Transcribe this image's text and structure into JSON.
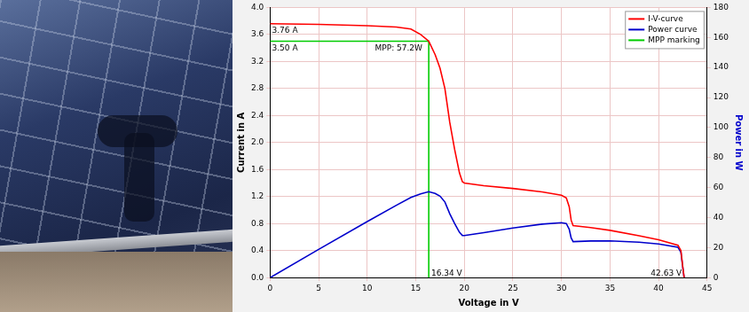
{
  "chart_data": {
    "type": "line",
    "xlabel": "Voltage in V",
    "ylabel": "Current in A",
    "y2label": "Power in W",
    "xlim": [
      0,
      45
    ],
    "xticks": [
      0,
      5,
      10,
      15,
      20,
      25,
      30,
      35,
      40,
      45
    ],
    "ylim": [
      0,
      4
    ],
    "yticks": [
      {
        "value": 0,
        "label": "0.0"
      },
      0.4,
      0.8,
      1.2,
      1.6,
      {
        "value": 2,
        "label": "2.0"
      },
      2.4,
      2.8,
      3.2,
      3.6,
      {
        "value": 4,
        "label": "4.0"
      }
    ],
    "y2lim": [
      0,
      180
    ],
    "y2ticks": [
      0,
      20,
      40,
      60,
      80,
      100,
      120,
      140,
      160,
      180
    ],
    "grid": true,
    "legend": "top-right",
    "series": [
      {
        "name": "I-V-curve",
        "color": "#ff0000",
        "x": [
          0,
          5,
          10,
          13,
          14.5,
          15.5,
          16.34,
          17,
          17.5,
          18,
          18.5,
          19,
          19.5,
          19.8,
          20,
          22,
          25,
          28,
          30,
          30.5,
          30.8,
          31,
          31.2,
          33,
          35,
          38,
          40,
          42,
          42.3,
          42.5,
          42.63
        ],
        "values": [
          3.76,
          3.75,
          3.73,
          3.71,
          3.68,
          3.6,
          3.5,
          3.3,
          3.1,
          2.8,
          2.3,
          1.9,
          1.55,
          1.42,
          1.4,
          1.36,
          1.32,
          1.27,
          1.22,
          1.18,
          1.05,
          0.85,
          0.77,
          0.74,
          0.7,
          0.62,
          0.56,
          0.48,
          0.4,
          0.15,
          0
        ]
      },
      {
        "name": "Power curve",
        "color": "#0000cc",
        "axis": "y2",
        "x": [
          0,
          5,
          10,
          13,
          14.5,
          15.5,
          16.34,
          17,
          17.5,
          18,
          18.5,
          19,
          19.5,
          19.8,
          20,
          22,
          25,
          28,
          30,
          30.5,
          30.8,
          31,
          31.2,
          33,
          35,
          38,
          40,
          42,
          42.3,
          42.5,
          42.63
        ],
        "values": [
          0,
          18.8,
          37.3,
          48.2,
          53.4,
          55.8,
          57.2,
          56.1,
          54.3,
          50.4,
          42.6,
          36.1,
          30.2,
          28.1,
          28,
          29.9,
          33,
          35.6,
          36.6,
          36,
          32.3,
          26.4,
          24,
          24.4,
          24.5,
          23.6,
          22.4,
          20.2,
          16.9,
          6.4,
          0
        ]
      },
      {
        "name": "MPP marking",
        "color": "#00cc00",
        "x": [
          0,
          16.34,
          16.34
        ],
        "values": [
          3.5,
          3.5,
          0
        ]
      }
    ],
    "annotations": [
      {
        "text": "3.76 A",
        "x": 0.2,
        "y": 3.72
      },
      {
        "text": "3.50 A",
        "x": 0.2,
        "y": 3.45
      },
      {
        "text": "MPP: 57.2W",
        "x": 10.8,
        "y": 3.45
      },
      {
        "text": "16.34 V",
        "x": 16.6,
        "y": 0.12
      },
      {
        "text": "42.63 V",
        "x": 39.2,
        "y": 0.12
      }
    ]
  }
}
